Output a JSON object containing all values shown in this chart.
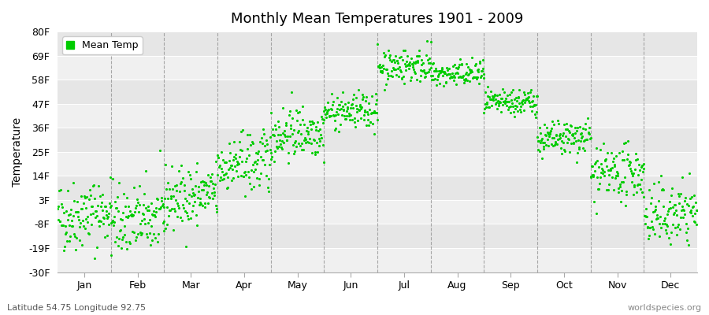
{
  "title": "Monthly Mean Temperatures 1901 - 2009",
  "ylabel": "Temperature",
  "xlabel_bottom_left": "Latitude 54.75 Longitude 92.75",
  "xlabel_bottom_right": "worldspecies.org",
  "yticks": [
    -30,
    -19,
    -8,
    3,
    14,
    25,
    36,
    47,
    58,
    69,
    80
  ],
  "ytick_labels": [
    "-30F",
    "-19F",
    "-8F",
    "3F",
    "14F",
    "25F",
    "36F",
    "47F",
    "58F",
    "69F",
    "80F"
  ],
  "ylim": [
    -30,
    80
  ],
  "months": [
    "Jan",
    "Feb",
    "Mar",
    "Apr",
    "May",
    "Jun",
    "Jul",
    "Aug",
    "Sep",
    "Oct",
    "Nov",
    "Dec"
  ],
  "dot_color": "#00cc00",
  "background_color": "#ffffff",
  "band_colors": [
    "#f0f0f0",
    "#e4e4e4",
    "#f0f0f0",
    "#e4e4e4",
    "#f0f0f0",
    "#e4e4e4",
    "#f0f0f0",
    "#e4e4e4",
    "#f0f0f0",
    "#e4e4e4"
  ],
  "legend_label": "Mean Temp",
  "monthly_means": [
    -5.0,
    -7.0,
    3.0,
    18.0,
    33.0,
    43.0,
    64.0,
    60.0,
    47.0,
    30.0,
    14.0,
    -5.0
  ],
  "monthly_stds": [
    8,
    8,
    7,
    7,
    6,
    4,
    4,
    3,
    3,
    4,
    6,
    7
  ],
  "monthly_trends": [
    0.03,
    0.02,
    0.03,
    0.03,
    0.02,
    0.01,
    0.01,
    0.01,
    0.01,
    0.02,
    0.02,
    0.03
  ],
  "n_years": 109,
  "start_year": 1901,
  "seed": 42
}
